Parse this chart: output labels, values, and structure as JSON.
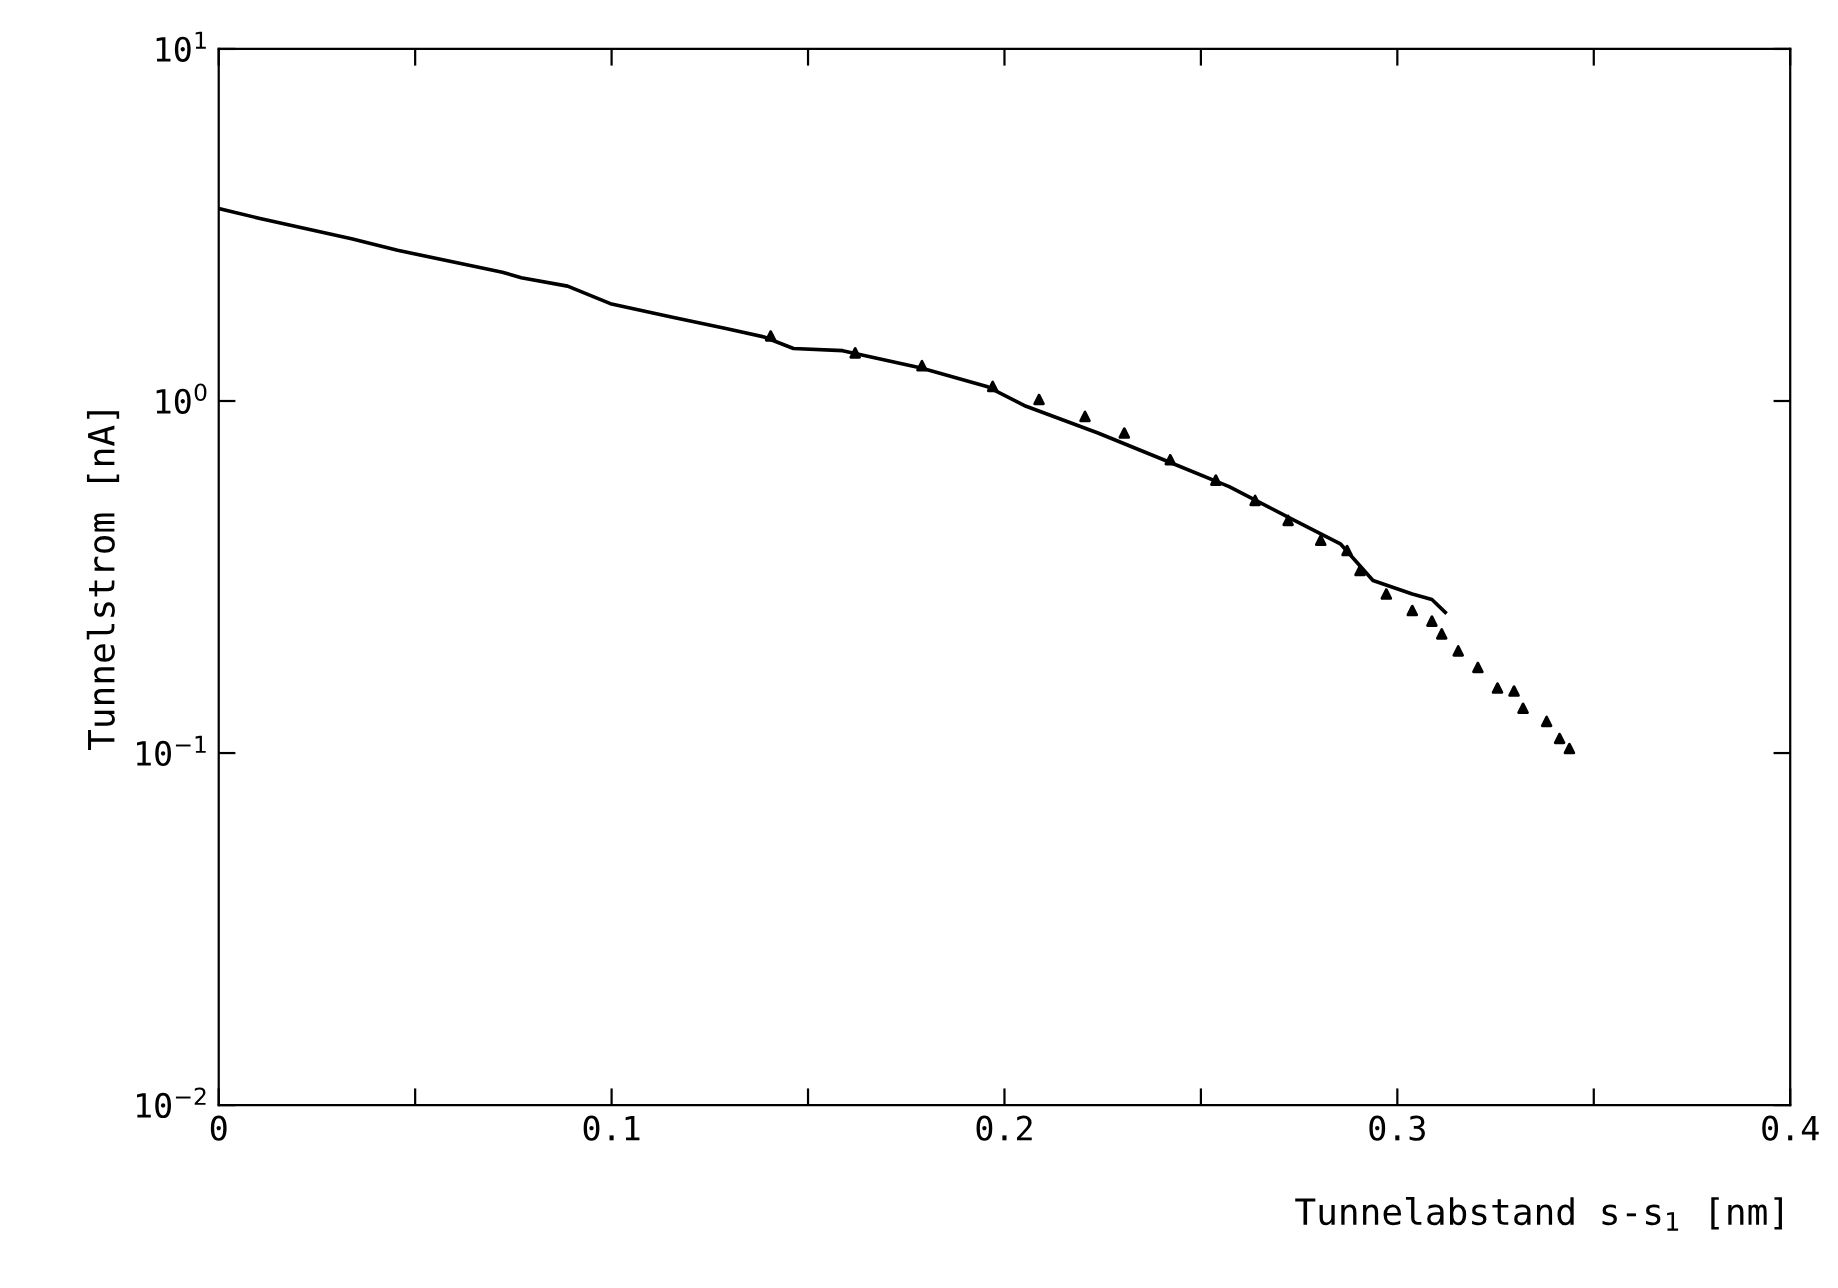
{
  "chart_data": {
    "type": "line",
    "xlabel": "Tunnelabstand s-s$_{1}$ [nm]",
    "ylabel": "Tunnelstrom [nA]",
    "log": "y",
    "grid": false,
    "xlim": [
      0,
      0.4
    ],
    "ylim": [
      0.01,
      10
    ],
    "xticks": [
      0,
      {
        "value": 0.05,
        "label": null
      },
      0.1,
      {
        "value": 0.15,
        "label": null
      },
      0.2,
      {
        "value": 0.25,
        "label": null
      },
      0.3,
      {
        "value": 0.35,
        "label": null
      },
      0.4
    ],
    "yticks": [
      {
        "value": 0.01,
        "label": "10$^{−2}$"
      },
      {
        "value": 0.1,
        "label": "10$^{−1}$"
      },
      {
        "value": 1,
        "label": "10$^{0}$"
      },
      {
        "value": 10,
        "label": "10$^{1}$"
      }
    ],
    "series": [
      {
        "color": "#000000",
        "line_style": "solid",
        "marker": "none",
        "x": [
          0,
          0.0105,
          0.0338,
          0.0455,
          0.0622,
          0.0722,
          0.077,
          0.0888,
          0.0997,
          0.1155,
          0.1288,
          0.1388,
          0.1463,
          0.1588,
          0.1788,
          0.1955,
          0.2055,
          0.2238,
          0.2405,
          0.2572,
          0.2738,
          0.2855,
          0.2938,
          0.3038,
          0.3088,
          0.3122
        ],
        "values": [
          3.52,
          3.3,
          2.89,
          2.68,
          2.45,
          2.32,
          2.24,
          2.12,
          1.89,
          1.73,
          1.61,
          1.52,
          1.41,
          1.39,
          1.24,
          1.1,
          0.966,
          0.811,
          0.681,
          0.571,
          0.458,
          0.393,
          0.309,
          0.283,
          0.273,
          0.251
        ]
      },
      {
        "type": "scatter",
        "color": "#000000",
        "marker": "triangle",
        "x": [
          0.1405,
          0.162,
          0.179,
          0.197,
          0.2088,
          0.2205,
          0.2305,
          0.2422,
          0.2538,
          0.2638,
          0.2722,
          0.2805,
          0.2872,
          0.2905,
          0.2972,
          0.3038,
          0.3088,
          0.3113,
          0.3155,
          0.3205,
          0.3255,
          0.3297,
          0.332,
          0.338,
          0.3413,
          0.3438
        ],
        "values": [
          1.53,
          1.37,
          1.26,
          1.1,
          1.01,
          0.904,
          0.811,
          0.681,
          0.596,
          0.522,
          0.458,
          0.402,
          0.376,
          0.33,
          0.283,
          0.254,
          0.237,
          0.218,
          0.195,
          0.175,
          0.153,
          0.15,
          0.134,
          0.123,
          0.11,
          0.103
        ]
      }
    ]
  }
}
